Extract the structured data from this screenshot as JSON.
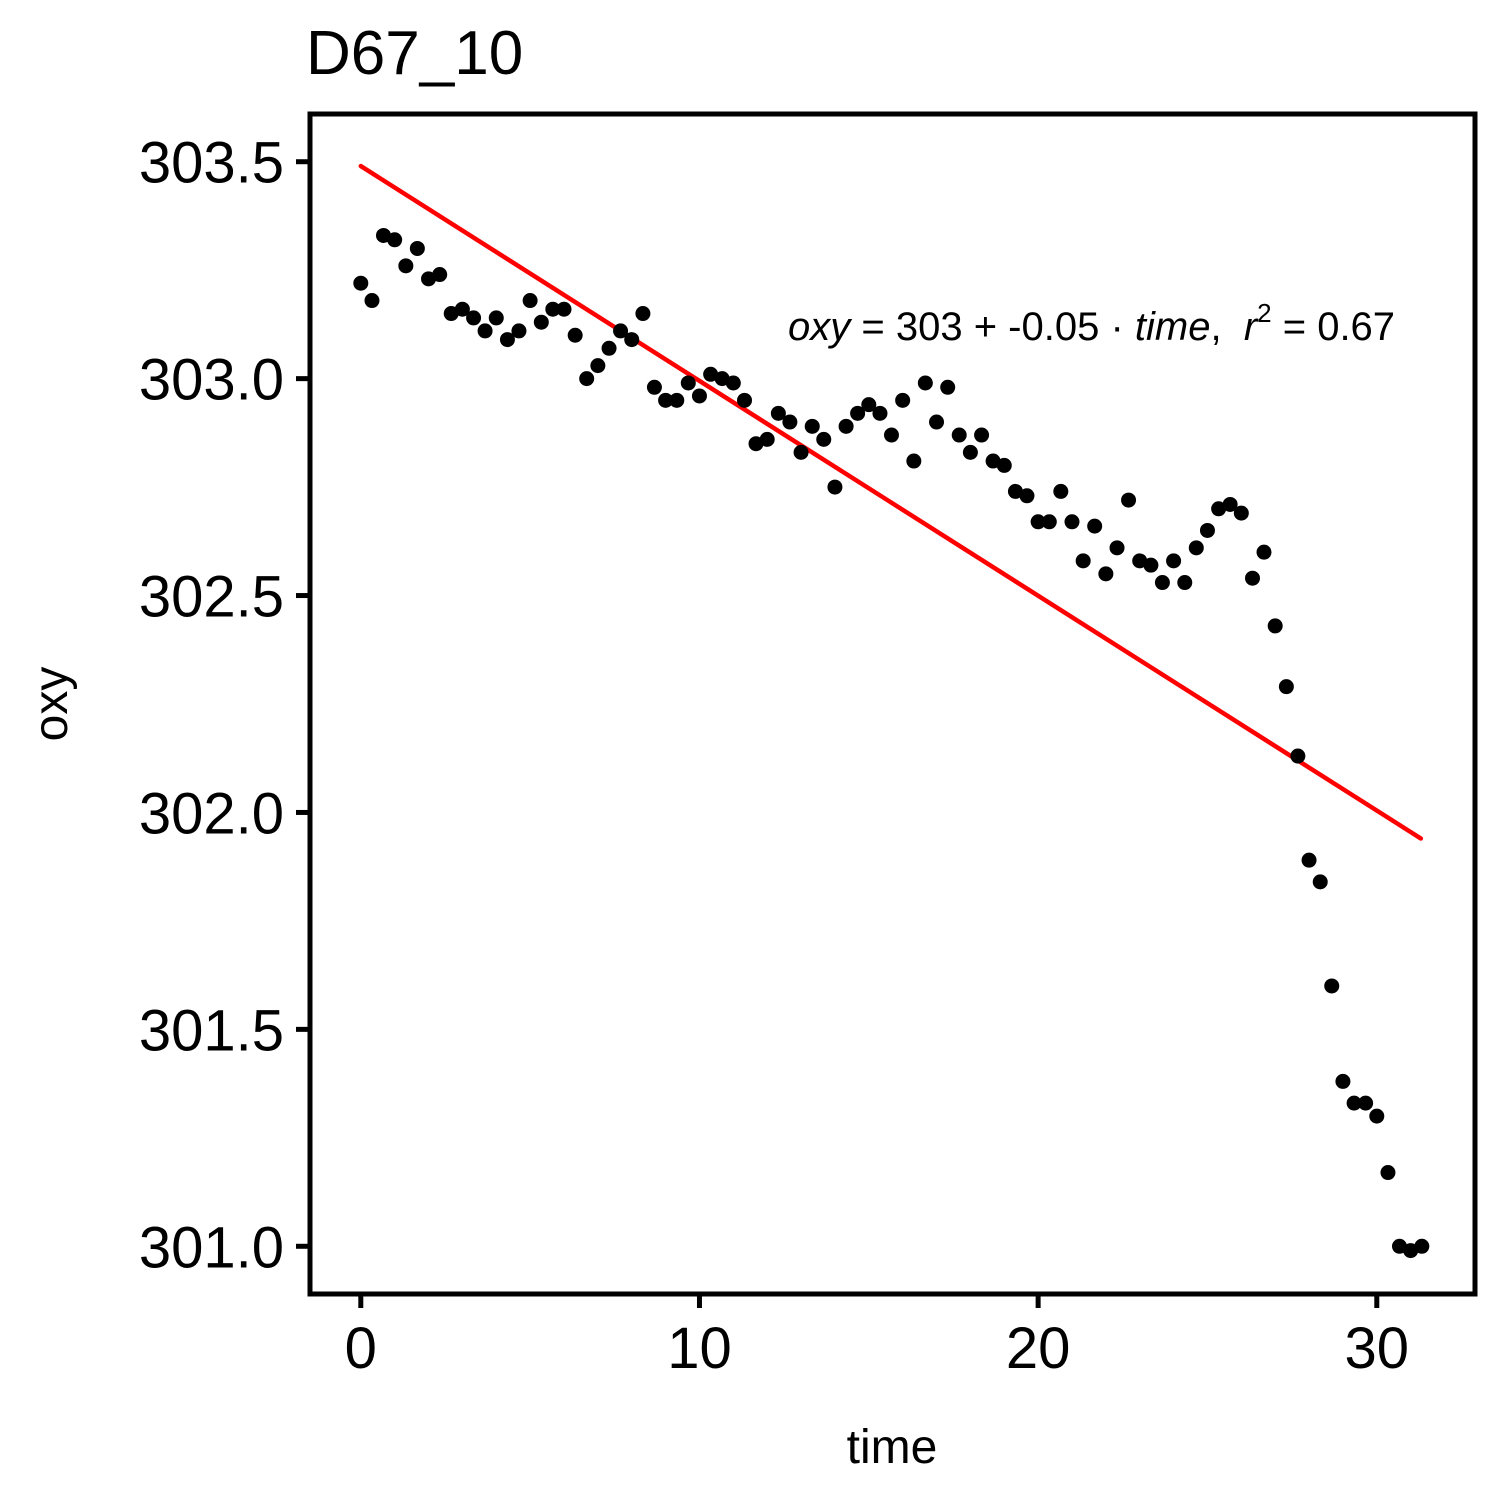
{
  "chart_data": {
    "type": "scatter",
    "title": "D67_10",
    "xlabel": "time",
    "ylabel": "oxy",
    "xlim": [
      -1.5,
      32.9
    ],
    "ylim": [
      300.89,
      303.61
    ],
    "xticks": [
      0,
      10,
      20,
      30
    ],
    "yticks": [
      301.0,
      301.5,
      302.0,
      302.5,
      303.0,
      303.5
    ],
    "xtick_labels": [
      "0",
      "10",
      "20",
      "30"
    ],
    "ytick_labels": [
      "301.0",
      "301.5",
      "302.0",
      "302.5",
      "303.0",
      "303.5"
    ],
    "grid": false,
    "legend": "none",
    "colors": {
      "points": "#000000",
      "fit_line": "#ff0000"
    },
    "annotation": {
      "lhs": "oxy",
      "eq": " = 303 + -0.05 · ",
      "var": "time",
      "sep": ",  ",
      "r": "r",
      "sup": "2",
      "tail": " = 0.67"
    },
    "fit_line": {
      "x": [
        0,
        31.3
      ],
      "y": [
        303.49,
        301.94
      ]
    },
    "points": {
      "x": [
        0.0,
        0.33,
        0.67,
        1.0,
        1.33,
        1.67,
        2.0,
        2.33,
        2.67,
        3.0,
        3.33,
        3.67,
        4.0,
        4.33,
        4.67,
        5.0,
        5.33,
        5.67,
        6.0,
        6.33,
        6.67,
        7.0,
        7.33,
        7.67,
        8.0,
        8.33,
        8.67,
        9.0,
        9.33,
        9.67,
        10.0,
        10.33,
        10.67,
        11.0,
        11.33,
        11.67,
        12.0,
        12.33,
        12.67,
        13.0,
        13.33,
        13.67,
        14.0,
        14.33,
        14.67,
        15.0,
        15.33,
        15.67,
        16.0,
        16.33,
        16.67,
        17.0,
        17.33,
        17.67,
        18.0,
        18.33,
        18.67,
        19.0,
        19.33,
        19.67,
        20.0,
        20.33,
        20.67,
        21.0,
        21.33,
        21.67,
        22.0,
        22.33,
        22.67,
        23.0,
        23.33,
        23.67,
        24.0,
        24.33,
        24.67,
        25.0,
        25.33,
        25.67,
        26.0,
        26.33,
        26.67,
        27.0,
        27.33,
        27.67,
        28.0,
        28.33,
        28.67,
        29.0,
        29.33,
        29.67,
        30.0,
        30.33,
        30.67,
        31.0,
        31.33
      ],
      "y": [
        303.22,
        303.18,
        303.33,
        303.32,
        303.26,
        303.3,
        303.23,
        303.24,
        303.15,
        303.16,
        303.14,
        303.11,
        303.14,
        303.09,
        303.11,
        303.18,
        303.13,
        303.16,
        303.16,
        303.1,
        303.0,
        303.03,
        303.07,
        303.11,
        303.09,
        303.15,
        302.98,
        302.95,
        302.95,
        302.99,
        302.96,
        303.01,
        303.0,
        302.99,
        302.95,
        302.85,
        302.86,
        302.92,
        302.9,
        302.83,
        302.89,
        302.86,
        302.75,
        302.89,
        302.92,
        302.94,
        302.92,
        302.87,
        302.95,
        302.81,
        302.99,
        302.9,
        302.98,
        302.87,
        302.83,
        302.87,
        302.81,
        302.8,
        302.74,
        302.73,
        302.67,
        302.67,
        302.74,
        302.67,
        302.58,
        302.66,
        302.55,
        302.61,
        302.72,
        302.58,
        302.57,
        302.53,
        302.58,
        302.53,
        302.61,
        302.65,
        302.7,
        302.71,
        302.69,
        302.54,
        302.6,
        302.43,
        302.29,
        302.13,
        301.89,
        301.84,
        301.6,
        301.38,
        301.33,
        301.33,
        301.3,
        301.17,
        301.0,
        300.99,
        301.0
      ]
    }
  }
}
